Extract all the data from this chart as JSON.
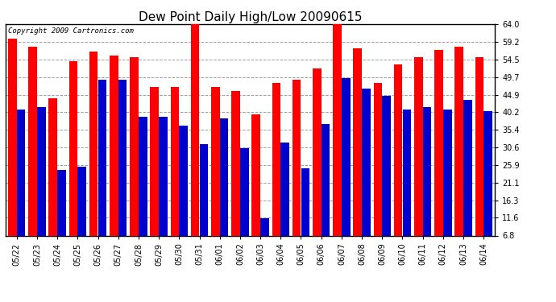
{
  "title": "Dew Point Daily High/Low 20090615",
  "copyright": "Copyright 2009 Cartronics.com",
  "categories": [
    "05/22",
    "05/23",
    "05/24",
    "05/25",
    "05/26",
    "05/27",
    "05/28",
    "05/29",
    "05/30",
    "05/31",
    "06/01",
    "06/02",
    "06/03",
    "06/04",
    "06/05",
    "06/06",
    "06/07",
    "06/08",
    "06/09",
    "06/10",
    "06/11",
    "06/12",
    "06/13",
    "06/14"
  ],
  "high_values": [
    60.0,
    58.0,
    44.0,
    54.0,
    56.5,
    55.5,
    55.0,
    47.0,
    47.0,
    64.5,
    47.0,
    46.0,
    39.5,
    48.0,
    49.0,
    52.0,
    65.0,
    57.5,
    48.0,
    53.0,
    55.0,
    57.0,
    58.0,
    55.0
  ],
  "low_values": [
    41.0,
    41.5,
    24.5,
    25.5,
    49.0,
    49.0,
    39.0,
    39.0,
    36.5,
    31.5,
    38.5,
    30.5,
    11.5,
    32.0,
    25.0,
    37.0,
    49.5,
    46.5,
    44.5,
    41.0,
    41.5,
    41.0,
    43.5,
    40.5
  ],
  "high_color": "#FF0000",
  "low_color": "#0000CC",
  "background_color": "#FFFFFF",
  "plot_bg_color": "#FFFFFF",
  "yticks": [
    6.8,
    11.6,
    16.3,
    21.1,
    25.9,
    30.6,
    35.4,
    40.2,
    44.9,
    49.7,
    54.5,
    59.2,
    64.0
  ],
  "ymin": 6.8,
  "ymax": 64.0,
  "title_fontsize": 11,
  "tick_fontsize": 7,
  "copyright_fontsize": 6.5,
  "fig_width": 6.9,
  "fig_height": 3.75,
  "dpi": 100
}
